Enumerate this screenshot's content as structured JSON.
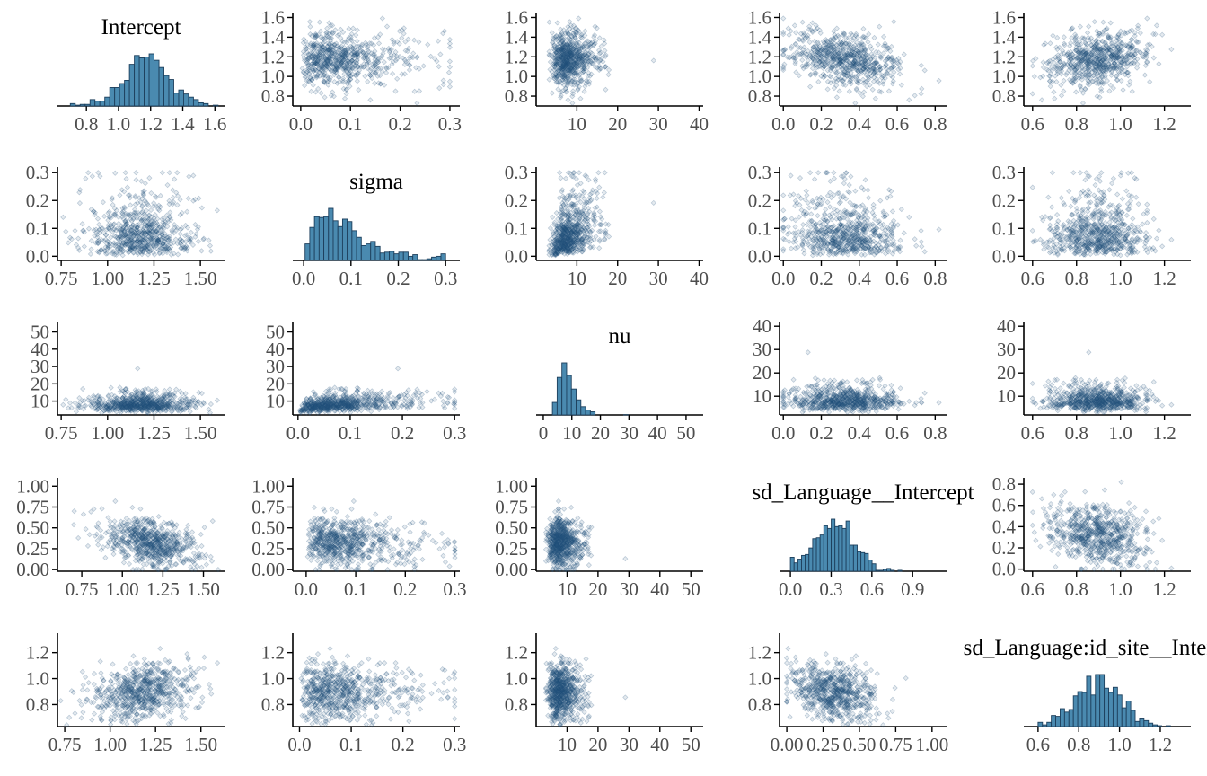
{
  "colors": {
    "point_fill": "#2b5b84",
    "bar_fill": "#4a8ab0",
    "bar_outline": "#1d3f5c",
    "axis": "#000000",
    "tick_label": "#4d4d4d"
  },
  "chart_data": {
    "type": "pairs",
    "variables": [
      "Intercept",
      "sigma",
      "nu",
      "sd_Language__Intercept",
      "sd_Language:id_site__Intercept"
    ],
    "titles": [
      "Intercept",
      "sigma",
      "nu",
      "sd_Language__Intercept",
      "sd_Language:id_site__Intercept"
    ],
    "x_axes": [
      [
        {
          "ticks": [
            0.8,
            1.0,
            1.2,
            1.4,
            1.6
          ],
          "labels": [
            "0.8",
            "1.0",
            "1.2",
            "1.4",
            "1.6"
          ],
          "range": [
            0.62,
            1.66
          ]
        },
        {
          "ticks": [
            0.0,
            0.1,
            0.2,
            0.3
          ],
          "labels": [
            "0.0",
            "0.1",
            "0.2",
            "0.3"
          ],
          "range": [
            -0.016,
            0.32
          ]
        },
        {
          "ticks": [
            10,
            20,
            30,
            40
          ],
          "labels": [
            "10",
            "20",
            "30",
            "40"
          ],
          "range": [
            0,
            41
          ]
        },
        {
          "ticks": [
            0.0,
            0.2,
            0.4,
            0.6,
            0.8
          ],
          "labels": [
            "0.0",
            "0.2",
            "0.4",
            "0.6",
            "0.8"
          ],
          "range": [
            -0.02,
            0.86
          ]
        },
        {
          "ticks": [
            0.6,
            0.8,
            1.0,
            1.2
          ],
          "labels": [
            "0.6",
            "0.8",
            "1.0",
            "1.2"
          ],
          "range": [
            0.56,
            1.32
          ]
        }
      ],
      [
        {
          "ticks": [
            0.75,
            1.0,
            1.25,
            1.5
          ],
          "labels": [
            "0.75",
            "1.00",
            "1.25",
            "1.50"
          ],
          "range": [
            0.73,
            1.63
          ]
        },
        {
          "ticks": [
            0.0,
            0.1,
            0.2,
            0.3
          ],
          "labels": [
            "0.0",
            "0.1",
            "0.2",
            "0.3"
          ],
          "range": [
            -0.023,
            0.33
          ]
        },
        {
          "ticks": [
            10,
            20,
            30,
            40
          ],
          "labels": [
            "10",
            "20",
            "30",
            "40"
          ],
          "range": [
            0,
            41
          ]
        },
        {
          "ticks": [
            0.0,
            0.2,
            0.4,
            0.6,
            0.8
          ],
          "labels": [
            "0.0",
            "0.2",
            "0.4",
            "0.6",
            "0.8"
          ],
          "range": [
            -0.02,
            0.86
          ]
        },
        {
          "ticks": [
            0.6,
            0.8,
            1.0,
            1.2
          ],
          "labels": [
            "0.6",
            "0.8",
            "1.0",
            "1.2"
          ],
          "range": [
            0.56,
            1.32
          ]
        }
      ],
      [
        {
          "ticks": [
            0.75,
            1.0,
            1.25,
            1.5
          ],
          "labels": [
            "0.75",
            "1.00",
            "1.25",
            "1.50"
          ],
          "range": [
            0.73,
            1.63
          ]
        },
        {
          "ticks": [
            0.0,
            0.1,
            0.2,
            0.3
          ],
          "labels": [
            "0.0",
            "0.1",
            "0.2",
            "0.3"
          ],
          "range": [
            -0.01,
            0.31
          ]
        },
        {
          "ticks": [
            0,
            10,
            20,
            30,
            40,
            50
          ],
          "labels": [
            "0",
            "10",
            "20",
            "30",
            "40",
            "50"
          ],
          "range": [
            -2.5,
            56
          ]
        },
        {
          "ticks": [
            0.0,
            0.2,
            0.4,
            0.6,
            0.8
          ],
          "labels": [
            "0.0",
            "0.2",
            "0.4",
            "0.6",
            "0.8"
          ],
          "range": [
            -0.02,
            0.86
          ]
        },
        {
          "ticks": [
            0.6,
            0.8,
            1.0,
            1.2
          ],
          "labels": [
            "0.6",
            "0.8",
            "1.0",
            "1.2"
          ],
          "range": [
            0.56,
            1.32
          ]
        }
      ],
      [
        {
          "ticks": [
            0.75,
            1.0,
            1.25,
            1.5
          ],
          "labels": [
            "0.75",
            "1.00",
            "1.25",
            "1.50"
          ],
          "range": [
            0.6,
            1.63
          ]
        },
        {
          "ticks": [
            0.0,
            0.1,
            0.2,
            0.3
          ],
          "labels": [
            "0.0",
            "0.1",
            "0.2",
            "0.3"
          ],
          "range": [
            -0.027,
            0.31
          ]
        },
        {
          "ticks": [
            10,
            20,
            30,
            40,
            50
          ],
          "labels": [
            "10",
            "20",
            "30",
            "40",
            "50"
          ],
          "range": [
            0,
            54
          ]
        },
        {
          "ticks": [
            0.0,
            0.3,
            0.6,
            0.9
          ],
          "labels": [
            "0.0",
            "0.3",
            "0.6",
            "0.9"
          ],
          "range": [
            -0.08,
            1.15
          ]
        },
        {
          "ticks": [
            0.6,
            0.8,
            1.0,
            1.2
          ],
          "labels": [
            "0.6",
            "0.8",
            "1.0",
            "1.2"
          ],
          "range": [
            0.56,
            1.32
          ]
        }
      ],
      [
        {
          "ticks": [
            0.75,
            1.0,
            1.25,
            1.5
          ],
          "labels": [
            "0.75",
            "1.00",
            "1.25",
            "1.50"
          ],
          "range": [
            0.71,
            1.63
          ]
        },
        {
          "ticks": [
            0.0,
            0.1,
            0.2,
            0.3
          ],
          "labels": [
            "0.0",
            "0.1",
            "0.2",
            "0.3"
          ],
          "range": [
            -0.013,
            0.31
          ]
        },
        {
          "ticks": [
            10,
            20,
            30,
            40,
            50
          ],
          "labels": [
            "10",
            "20",
            "30",
            "40",
            "50"
          ],
          "range": [
            0,
            54
          ]
        },
        {
          "ticks": [
            0.0,
            0.25,
            0.5,
            0.75,
            1.0
          ],
          "labels": [
            "0.00",
            "0.25",
            "0.50",
            "0.75",
            "1.00"
          ],
          "range": [
            -0.05,
            1.1
          ]
        },
        {
          "ticks": [
            0.6,
            0.8,
            1.0,
            1.2
          ],
          "labels": [
            "0.6",
            "0.8",
            "1.0",
            "1.2"
          ],
          "range": [
            0.53,
            1.35
          ]
        }
      ]
    ],
    "y_axes": [
      {
        "ticks": [
          0.8,
          1.0,
          1.2,
          1.4,
          1.6
        ],
        "labels": [
          "0.8",
          "1.0",
          "1.2",
          "1.4",
          "1.6"
        ],
        "range": [
          0.7,
          1.65
        ]
      },
      {
        "ticks": [
          0.0,
          0.1,
          0.2,
          0.3
        ],
        "labels": [
          "0.0",
          "0.1",
          "0.2",
          "0.3"
        ],
        "range": [
          -0.015,
          0.32
        ]
      },
      {
        "ticks": [
          10,
          20,
          30,
          40,
          50
        ],
        "labels": [
          "10",
          "20",
          "30",
          "40",
          "50"
        ],
        "range": [
          2,
          56
        ]
      },
      {
        "ticks": [
          0.0,
          0.25,
          0.5,
          0.75,
          1.0
        ],
        "labels": [
          "0.00",
          "0.25",
          "0.50",
          "0.75",
          "1.00"
        ],
        "range": [
          -0.02,
          1.1
        ]
      },
      {
        "ticks": [
          0.8,
          1.0,
          1.2
        ],
        "labels": [
          "0.8",
          "1.0",
          "1.2"
        ],
        "range": [
          0.63,
          1.35
        ]
      }
    ],
    "y_axes_alt": {
      "2-3": {
        "ticks": [
          10,
          20,
          30,
          40
        ],
        "labels": [
          "10",
          "20",
          "30",
          "40"
        ],
        "range": [
          2,
          42
        ]
      },
      "2-4": {
        "ticks": [
          10,
          20,
          30,
          40
        ],
        "labels": [
          "10",
          "20",
          "30",
          "40"
        ],
        "range": [
          2,
          42
        ]
      },
      "3-4": {
        "ticks": [
          0.0,
          0.2,
          0.4,
          0.6,
          0.8
        ],
        "labels": [
          "0.0",
          "0.2",
          "0.4",
          "0.6",
          "0.8"
        ],
        "range": [
          -0.02,
          0.86
        ]
      }
    },
    "draws": 700,
    "distributions": [
      {
        "kind": "normal",
        "mean": 1.18,
        "sd": 0.14,
        "min": 0.7,
        "max": 1.62
      },
      {
        "kind": "gamma",
        "shape": 2.1,
        "scale": 0.042,
        "min": 0.003,
        "max": 0.3
      },
      {
        "kind": "lognormal",
        "mu": 2.12,
        "sigma": 0.38,
        "min": 3.2,
        "max": 53
      },
      {
        "kind": "normal",
        "mean": 0.32,
        "sd": 0.15,
        "min": 0.0,
        "max": 0.82
      },
      {
        "kind": "normal",
        "mean": 0.9,
        "sd": 0.11,
        "min": 0.6,
        "max": 1.25
      }
    ],
    "correlations": {
      "0-1": 0.08,
      "0-2": 0.05,
      "0-3": -0.35,
      "0-4": 0.25,
      "1-2": 0.32,
      "1-3": 0.0,
      "1-4": 0.0,
      "2-3": 0.0,
      "2-4": 0.0,
      "3-4": -0.15
    },
    "histogram_bins": 30
  }
}
